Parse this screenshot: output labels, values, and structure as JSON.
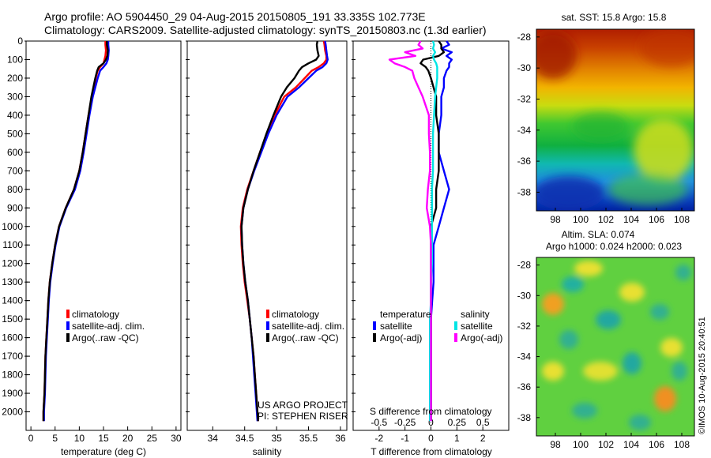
{
  "header": {
    "title_line1": "Argo profile: AO 5904450_29 04-Aug-2015 20150805_191 33.335S 102.773E",
    "title_line2": "Climatology: CARS2009. Satellite-adjusted climatology: synTS_20150803.nc (1.3d earlier)"
  },
  "colors": {
    "climatology": "#ff0000",
    "satellite": "#0000ff",
    "argo": "#000000",
    "sal_satellite": "#00e5e5",
    "sal_argo": "#ff00ff"
  },
  "chart_data": [
    {
      "type": "line",
      "name": "temperature-profile",
      "xlabel": "temperature (deg C)",
      "ylabel": "",
      "xlim": [
        -1,
        31
      ],
      "ylim": [
        2100,
        0
      ],
      "xticks": [
        0,
        5,
        10,
        15,
        20,
        25,
        30
      ],
      "yticks": [
        0,
        100,
        200,
        300,
        400,
        500,
        600,
        700,
        800,
        900,
        1000,
        1100,
        1200,
        1300,
        1400,
        1500,
        1600,
        1700,
        1800,
        1900,
        2000
      ],
      "depth": [
        0,
        20,
        50,
        80,
        100,
        120,
        140,
        160,
        200,
        250,
        300,
        400,
        500,
        600,
        700,
        800,
        900,
        1000,
        1100,
        1200,
        1300,
        1400,
        1500,
        1600,
        1700,
        1800,
        1900,
        2000,
        2050
      ],
      "series": [
        {
          "name": "climatology",
          "values": [
            15.4,
            15.4,
            15.5,
            15.4,
            15.2,
            15.0,
            14.3,
            13.8,
            13.4,
            13.0,
            12.6,
            11.9,
            11.3,
            10.7,
            10.0,
            8.9,
            7.2,
            5.8,
            5.0,
            4.4,
            3.9,
            3.6,
            3.4,
            3.2,
            3.0,
            2.9,
            2.8,
            2.6,
            2.6
          ]
        },
        {
          "name": "satellite-adj. clim.",
          "values": [
            16.0,
            16.0,
            16.1,
            16.0,
            15.9,
            15.6,
            15.0,
            14.3,
            13.8,
            13.3,
            12.8,
            12.1,
            11.5,
            10.9,
            10.2,
            9.1,
            7.3,
            5.9,
            5.1,
            4.5,
            4.0,
            3.7,
            3.5,
            3.3,
            3.1,
            3.0,
            2.9,
            2.7,
            2.7
          ]
        },
        {
          "name": "Argo(..raw -QC)",
          "values": [
            15.7,
            15.7,
            15.9,
            15.8,
            15.5,
            15.0,
            14.0,
            13.7,
            13.3,
            12.9,
            12.5,
            11.9,
            11.3,
            10.7,
            10.0,
            8.9,
            7.2,
            5.8,
            5.0,
            4.4,
            3.9,
            3.6,
            3.4,
            3.2,
            3.0,
            2.9,
            2.8,
            2.6,
            2.6
          ]
        }
      ],
      "legend": [
        "climatology",
        "satellite-adj. clim.",
        "Argo(..raw -QC)"
      ],
      "legend_position": "lower-middle"
    },
    {
      "type": "line",
      "name": "salinity-profile",
      "xlabel": "salinity",
      "ylabel": "",
      "xlim": [
        33.6,
        36.1
      ],
      "ylim": [
        2100,
        0
      ],
      "xticks": [
        34,
        34.5,
        35,
        35.5,
        36
      ],
      "xtick_labels": [
        "34",
        "34.5",
        "35",
        "35.5",
        "36"
      ],
      "depth": [
        0,
        20,
        50,
        80,
        100,
        120,
        140,
        160,
        200,
        250,
        300,
        400,
        500,
        600,
        700,
        800,
        900,
        1000,
        1100,
        1200,
        1300,
        1400,
        1500,
        1600,
        1700,
        1800,
        1900,
        2000,
        2050
      ],
      "series": [
        {
          "name": "climatology",
          "values": [
            35.74,
            35.75,
            35.76,
            35.78,
            35.78,
            35.74,
            35.66,
            35.55,
            35.44,
            35.3,
            35.12,
            34.97,
            34.85,
            34.74,
            34.64,
            34.54,
            34.47,
            34.44,
            34.45,
            34.47,
            34.5,
            34.54,
            34.58,
            34.61,
            34.64,
            34.66,
            34.68,
            34.7,
            34.71
          ]
        },
        {
          "name": "satellite-adj. clim.",
          "values": [
            35.76,
            35.77,
            35.78,
            35.79,
            35.8,
            35.78,
            35.72,
            35.62,
            35.5,
            35.35,
            35.17,
            35.0,
            34.87,
            34.76,
            34.65,
            34.55,
            34.48,
            34.45,
            34.46,
            34.48,
            34.51,
            34.55,
            34.58,
            34.61,
            34.63,
            34.65,
            34.67,
            34.69,
            34.7
          ]
        },
        {
          "name": "Argo(..raw -QC)",
          "values": [
            35.64,
            35.63,
            35.64,
            35.66,
            35.62,
            35.5,
            35.4,
            35.35,
            35.28,
            35.16,
            35.07,
            34.95,
            34.84,
            34.74,
            34.64,
            34.55,
            34.48,
            34.45,
            34.46,
            34.48,
            34.51,
            34.55,
            34.58,
            34.61,
            34.64,
            34.66,
            34.68,
            34.7,
            34.71
          ]
        }
      ],
      "legend": [
        "climatology",
        "satellite-adj. clim.",
        "Argo(..raw -QC)"
      ],
      "legend_position": "lower-right",
      "annotation_lines": [
        "US ARGO PROJECT",
        "PI: STEPHEN RISER"
      ]
    },
    {
      "type": "line",
      "name": "difference-profile",
      "xlabel": "T difference from climatology",
      "xlabel_top": "S difference from climatology",
      "xlim": [
        -3,
        3
      ],
      "ylim": [
        2100,
        0
      ],
      "xticks": [
        -2,
        -1,
        0,
        1,
        2
      ],
      "xtick_labels": [
        "-2",
        "-1",
        "0",
        "1",
        "2"
      ],
      "sticks": [
        -0.5,
        -0.25,
        0,
        0.25,
        0.5
      ],
      "stick_labels": [
        "-0.5",
        "-0.25",
        "0",
        "0.25",
        "0.5"
      ],
      "depth": [
        0,
        20,
        40,
        60,
        80,
        100,
        120,
        140,
        160,
        200,
        250,
        300,
        400,
        500,
        600,
        700,
        800,
        900,
        1000,
        1100,
        1200,
        1300,
        1400,
        1500,
        1600,
        1700,
        1800,
        1900,
        2000,
        2050
      ],
      "series": [
        {
          "name": "temperature satellite",
          "values": [
            0.6,
            0.7,
            0.4,
            0.8,
            0.6,
            0.8,
            0.7,
            0.7,
            0.6,
            0.5,
            0.5,
            0.4,
            0.4,
            0.3,
            0.3,
            0.5,
            0.7,
            0.5,
            0.3,
            0.1,
            0.1,
            0.1,
            0.05,
            0.0,
            0.0,
            0.0,
            0.0,
            0.0,
            0.0,
            0.0
          ]
        },
        {
          "name": "temperature Argo(-adj)",
          "values": [
            0.3,
            0.4,
            0.4,
            0.5,
            0.3,
            -0.3,
            -0.4,
            -0.2,
            -0.1,
            0.0,
            0.1,
            0.2,
            0.2,
            0.3,
            0.3,
            0.3,
            0.2,
            0.2,
            0.0,
            0.0,
            0.0,
            0.0,
            0.0,
            0.0,
            0.0,
            0.0,
            0.0,
            0.0,
            0.0,
            0.0
          ]
        },
        {
          "name": "salinity satellite",
          "values": [
            0.02,
            0.03,
            0.02,
            0.04,
            0.02,
            0.03,
            0.05,
            0.06,
            0.06,
            0.06,
            0.05,
            0.04,
            0.03,
            0.02,
            0.02,
            0.02,
            0.01,
            0.01,
            0.01,
            0.01,
            0.01,
            0.0,
            0.0,
            -0.01,
            -0.01,
            -0.01,
            -0.01,
            -0.01,
            -0.01,
            -0.01
          ]
        },
        {
          "name": "salinity Argo(-adj)",
          "values": [
            -0.1,
            -0.12,
            -0.08,
            -0.25,
            -0.15,
            -0.4,
            -0.35,
            -0.25,
            -0.18,
            -0.16,
            -0.12,
            -0.08,
            -0.02,
            -0.02,
            -0.01,
            -0.01,
            -0.03,
            -0.04,
            -0.01,
            0.0,
            0.0,
            0.0,
            0.0,
            0.0,
            0.0,
            0.0,
            0.0,
            0.0,
            0.0,
            0.0
          ]
        }
      ],
      "legend_groups": [
        {
          "title": "temperature",
          "entries": [
            "satellite",
            "Argo(-adj)"
          ]
        },
        {
          "title": "salinity",
          "entries": [
            "satellite",
            "Argo(-adj)"
          ]
        }
      ],
      "legend_position": "lower-middle"
    },
    {
      "type": "heatmap",
      "name": "sst-map",
      "title": "sat. SST: 15.8  Argo: 15.8",
      "xticks": [
        98,
        100,
        102,
        104,
        106,
        108
      ],
      "yticks": [
        -28,
        -30,
        -32,
        -34,
        -36,
        -38
      ],
      "xlim": [
        96.5,
        109
      ],
      "ylim": [
        -39.2,
        -27.5
      ]
    },
    {
      "type": "heatmap",
      "name": "sla-map",
      "title": "Altim. SLA: 0.074",
      "subtitle": "Argo h1000: 0.024  h2000: 0.023",
      "xticks": [
        98,
        100,
        102,
        104,
        106,
        108
      ],
      "yticks": [
        -28,
        -30,
        -32,
        -34,
        -36,
        -38
      ],
      "xlim": [
        96.5,
        109
      ],
      "ylim": [
        -39.2,
        -27.5
      ]
    }
  ],
  "footer": {
    "credit": "©IMOS 10-Aug-2015 20:40:51"
  }
}
